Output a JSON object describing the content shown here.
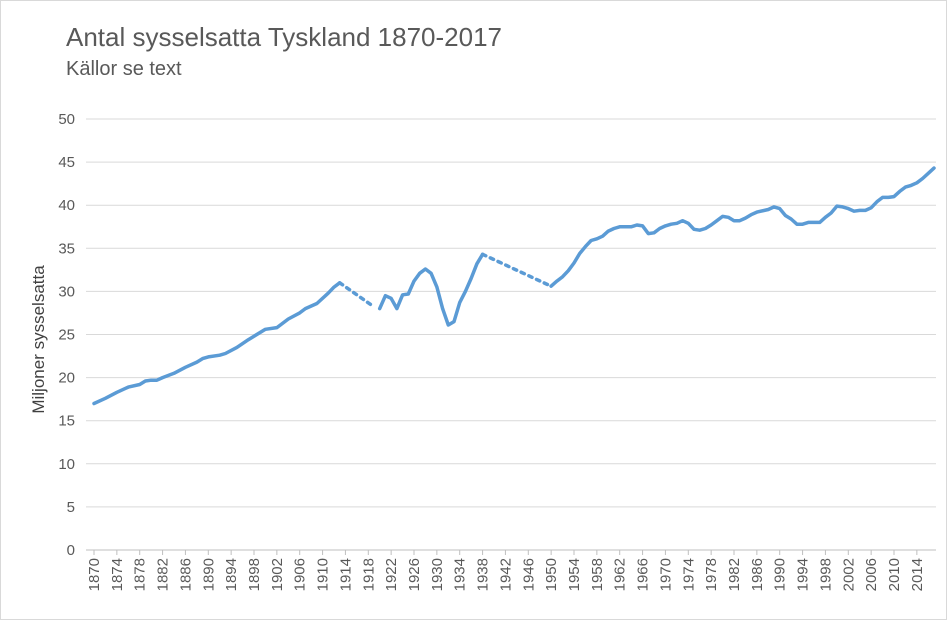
{
  "chart_data": {
    "type": "line",
    "title": "Antal sysselsatta Tyskland 1870-2017",
    "subtitle": "Källor se text",
    "xlabel": "",
    "ylabel": "Miljoner sysselsatta",
    "ylim": [
      0,
      50
    ],
    "yticks": [
      "0",
      "5",
      "10",
      "15",
      "20",
      "25",
      "30",
      "35",
      "40",
      "45",
      "50"
    ],
    "xlim": [
      1870,
      2017
    ],
    "xticks": [
      "1870",
      "1874",
      "1878",
      "1882",
      "1886",
      "1890",
      "1894",
      "1898",
      "1902",
      "1906",
      "1910",
      "1914",
      "1918",
      "1922",
      "1926",
      "1930",
      "1934",
      "1938",
      "1942",
      "1946",
      "1950",
      "1954",
      "1958",
      "1962",
      "1966",
      "1970",
      "1974",
      "1978",
      "1982",
      "1986",
      "1990",
      "1994",
      "1998",
      "2002",
      "2006",
      "2010",
      "2014"
    ],
    "grid": true,
    "color": "#5b9bd5",
    "series": [
      {
        "style": "solid",
        "points": [
          [
            1870,
            17.0
          ],
          [
            1872,
            17.6
          ],
          [
            1874,
            18.3
          ],
          [
            1876,
            18.9
          ],
          [
            1878,
            19.2
          ],
          [
            1879,
            19.6
          ],
          [
            1880,
            19.7
          ],
          [
            1881,
            19.7
          ],
          [
            1882,
            20.0
          ],
          [
            1884,
            20.5
          ],
          [
            1886,
            21.2
          ],
          [
            1888,
            21.8
          ],
          [
            1889,
            22.2
          ],
          [
            1890,
            22.4
          ],
          [
            1892,
            22.6
          ],
          [
            1893,
            22.8
          ],
          [
            1895,
            23.5
          ],
          [
            1897,
            24.4
          ],
          [
            1898,
            24.8
          ],
          [
            1900,
            25.6
          ],
          [
            1902,
            25.8
          ],
          [
            1904,
            26.8
          ],
          [
            1906,
            27.5
          ],
          [
            1907,
            28.0
          ],
          [
            1909,
            28.6
          ],
          [
            1911,
            29.8
          ],
          [
            1912,
            30.5
          ],
          [
            1913,
            31.0
          ]
        ]
      },
      {
        "style": "dotted",
        "points": [
          [
            1913,
            31.0
          ],
          [
            1919,
            28.2
          ]
        ]
      },
      {
        "style": "solid",
        "points": [
          [
            1920,
            28.0
          ],
          [
            1921,
            29.5
          ],
          [
            1922,
            29.2
          ],
          [
            1923,
            28.0
          ],
          [
            1924,
            29.6
          ],
          [
            1925,
            29.7
          ],
          [
            1926,
            31.2
          ],
          [
            1927,
            32.1
          ],
          [
            1928,
            32.6
          ],
          [
            1929,
            32.1
          ],
          [
            1930,
            30.5
          ],
          [
            1931,
            28.0
          ],
          [
            1932,
            26.1
          ],
          [
            1933,
            26.5
          ],
          [
            1934,
            28.7
          ],
          [
            1935,
            30.0
          ],
          [
            1936,
            31.5
          ],
          [
            1937,
            33.2
          ],
          [
            1938,
            34.3
          ]
        ]
      },
      {
        "style": "dotted",
        "points": [
          [
            1938,
            34.3
          ],
          [
            1950,
            30.6
          ]
        ]
      },
      {
        "style": "solid",
        "points": [
          [
            1950,
            30.6
          ],
          [
            1951,
            31.2
          ],
          [
            1952,
            31.7
          ],
          [
            1953,
            32.4
          ],
          [
            1954,
            33.3
          ],
          [
            1955,
            34.4
          ],
          [
            1956,
            35.2
          ],
          [
            1957,
            35.9
          ],
          [
            1958,
            36.1
          ],
          [
            1959,
            36.4
          ],
          [
            1960,
            37.0
          ],
          [
            1961,
            37.3
          ],
          [
            1962,
            37.5
          ],
          [
            1964,
            37.5
          ],
          [
            1965,
            37.7
          ],
          [
            1966,
            37.6
          ],
          [
            1967,
            36.7
          ],
          [
            1968,
            36.8
          ],
          [
            1969,
            37.3
          ],
          [
            1970,
            37.6
          ],
          [
            1971,
            37.8
          ],
          [
            1972,
            37.9
          ],
          [
            1973,
            38.2
          ],
          [
            1974,
            37.9
          ],
          [
            1975,
            37.2
          ],
          [
            1976,
            37.1
          ],
          [
            1977,
            37.3
          ],
          [
            1978,
            37.7
          ],
          [
            1979,
            38.2
          ],
          [
            1980,
            38.7
          ],
          [
            1981,
            38.6
          ],
          [
            1982,
            38.2
          ],
          [
            1983,
            38.2
          ],
          [
            1984,
            38.5
          ],
          [
            1985,
            38.9
          ],
          [
            1986,
            39.2
          ],
          [
            1988,
            39.5
          ],
          [
            1989,
            39.8
          ],
          [
            1990,
            39.6
          ],
          [
            1991,
            38.8
          ],
          [
            1992,
            38.4
          ],
          [
            1993,
            37.8
          ],
          [
            1994,
            37.8
          ],
          [
            1995,
            38.0
          ],
          [
            1996,
            38.0
          ],
          [
            1997,
            38.0
          ],
          [
            1998,
            38.6
          ],
          [
            1999,
            39.1
          ],
          [
            2000,
            39.9
          ],
          [
            2001,
            39.8
          ],
          [
            2002,
            39.6
          ],
          [
            2003,
            39.3
          ],
          [
            2004,
            39.4
          ],
          [
            2005,
            39.4
          ],
          [
            2006,
            39.7
          ],
          [
            2007,
            40.4
          ],
          [
            2008,
            40.9
          ],
          [
            2009,
            40.9
          ],
          [
            2010,
            41.0
          ],
          [
            2011,
            41.6
          ],
          [
            2012,
            42.1
          ],
          [
            2013,
            42.3
          ],
          [
            2014,
            42.6
          ],
          [
            2015,
            43.1
          ],
          [
            2016,
            43.7
          ],
          [
            2017,
            44.3
          ]
        ]
      }
    ]
  }
}
